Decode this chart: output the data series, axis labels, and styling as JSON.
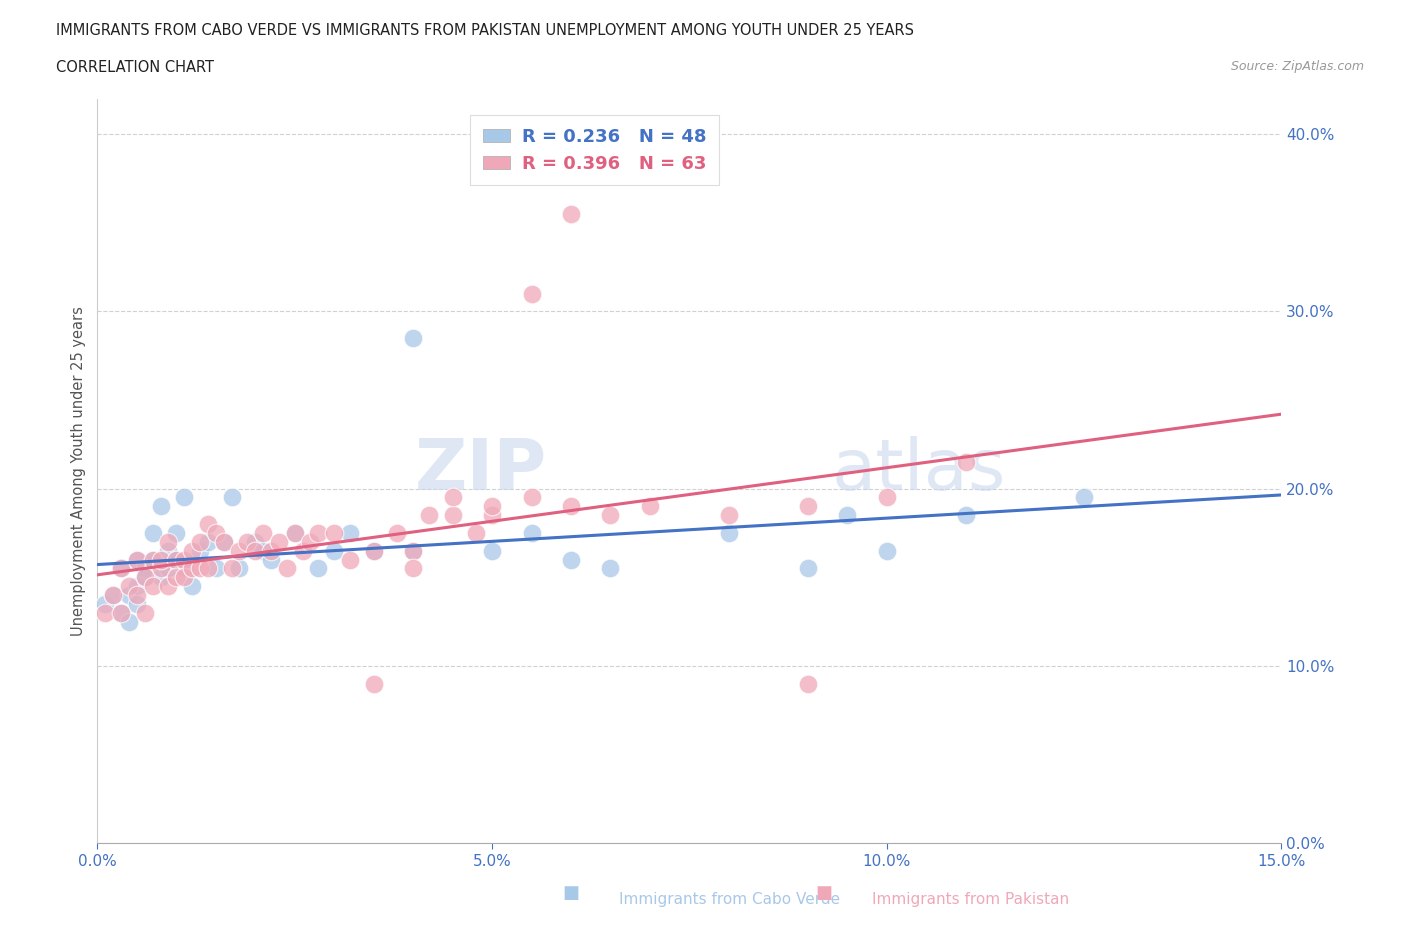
{
  "title_line1": "IMMIGRANTS FROM CABO VERDE VS IMMIGRANTS FROM PAKISTAN UNEMPLOYMENT AMONG YOUTH UNDER 25 YEARS",
  "title_line2": "CORRELATION CHART",
  "source": "Source: ZipAtlas.com",
  "ylabel": "Unemployment Among Youth under 25 years",
  "xlabel_cabo": "Immigrants from Cabo Verde",
  "xlabel_pak": "Immigrants from Pakistan",
  "r_cabo": 0.236,
  "n_cabo": 48,
  "r_pak": 0.396,
  "n_pak": 63,
  "xmin": 0.0,
  "xmax": 0.15,
  "ymin": 0.0,
  "ymax": 0.42,
  "yticks": [
    0.0,
    0.1,
    0.2,
    0.3,
    0.4
  ],
  "xticks": [
    0.0,
    0.05,
    0.1,
    0.15
  ],
  "color_cabo": "#a8c8e8",
  "color_pak": "#f0a8b8",
  "color_cabo_line": "#4472c4",
  "color_pak_line": "#e06080",
  "watermark_zip": "ZIP",
  "watermark_atlas": "atlas",
  "cabo_x": [
    0.001,
    0.002,
    0.003,
    0.003,
    0.004,
    0.004,
    0.005,
    0.005,
    0.005,
    0.006,
    0.006,
    0.007,
    0.007,
    0.008,
    0.008,
    0.009,
    0.009,
    0.01,
    0.01,
    0.011,
    0.011,
    0.012,
    0.013,
    0.014,
    0.015,
    0.016,
    0.017,
    0.018,
    0.02,
    0.021,
    0.022,
    0.025,
    0.028,
    0.03,
    0.032,
    0.035,
    0.04,
    0.05,
    0.055,
    0.06,
    0.065,
    0.08,
    0.09,
    0.095,
    0.1,
    0.11,
    0.125,
    0.04
  ],
  "cabo_y": [
    0.135,
    0.14,
    0.13,
    0.155,
    0.125,
    0.14,
    0.16,
    0.145,
    0.135,
    0.155,
    0.15,
    0.175,
    0.16,
    0.19,
    0.15,
    0.165,
    0.155,
    0.175,
    0.16,
    0.155,
    0.195,
    0.145,
    0.165,
    0.17,
    0.155,
    0.17,
    0.195,
    0.155,
    0.17,
    0.165,
    0.16,
    0.175,
    0.155,
    0.165,
    0.175,
    0.165,
    0.165,
    0.165,
    0.175,
    0.16,
    0.155,
    0.175,
    0.155,
    0.185,
    0.165,
    0.185,
    0.195,
    0.285
  ],
  "pak_x": [
    0.001,
    0.002,
    0.003,
    0.003,
    0.004,
    0.005,
    0.005,
    0.006,
    0.006,
    0.007,
    0.007,
    0.008,
    0.008,
    0.009,
    0.009,
    0.01,
    0.01,
    0.011,
    0.011,
    0.012,
    0.012,
    0.013,
    0.013,
    0.014,
    0.014,
    0.015,
    0.016,
    0.017,
    0.018,
    0.019,
    0.02,
    0.021,
    0.022,
    0.023,
    0.024,
    0.025,
    0.026,
    0.027,
    0.028,
    0.03,
    0.032,
    0.035,
    0.038,
    0.04,
    0.042,
    0.045,
    0.048,
    0.05,
    0.055,
    0.06,
    0.065,
    0.07,
    0.08,
    0.09,
    0.09,
    0.1,
    0.11,
    0.055,
    0.06,
    0.045,
    0.05,
    0.035,
    0.04
  ],
  "pak_y": [
    0.13,
    0.14,
    0.13,
    0.155,
    0.145,
    0.14,
    0.16,
    0.13,
    0.15,
    0.16,
    0.145,
    0.155,
    0.16,
    0.17,
    0.145,
    0.16,
    0.15,
    0.16,
    0.15,
    0.165,
    0.155,
    0.17,
    0.155,
    0.18,
    0.155,
    0.175,
    0.17,
    0.155,
    0.165,
    0.17,
    0.165,
    0.175,
    0.165,
    0.17,
    0.155,
    0.175,
    0.165,
    0.17,
    0.175,
    0.175,
    0.16,
    0.165,
    0.175,
    0.165,
    0.185,
    0.185,
    0.175,
    0.185,
    0.195,
    0.19,
    0.185,
    0.19,
    0.185,
    0.09,
    0.19,
    0.195,
    0.215,
    0.31,
    0.355,
    0.195,
    0.19,
    0.09,
    0.155
  ]
}
